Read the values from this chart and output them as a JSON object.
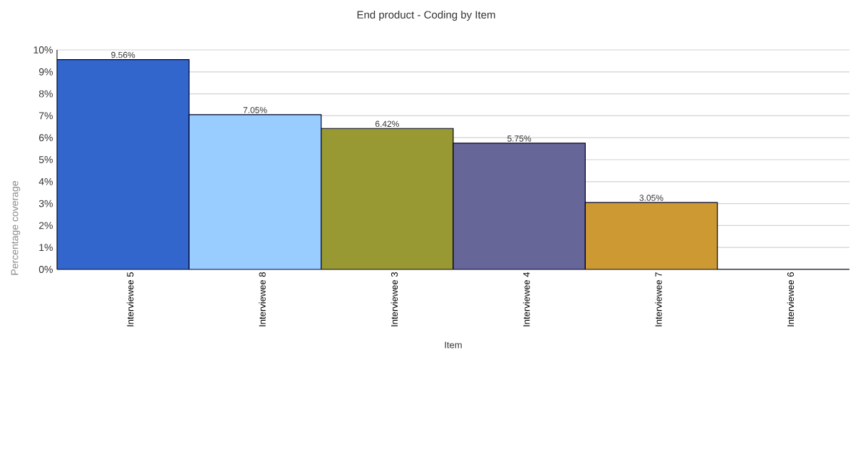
{
  "chart_data": {
    "type": "bar",
    "title": "End product - Coding by Item",
    "xlabel": "Item",
    "ylabel": "Percentage coverage",
    "categories": [
      "Interviewee 5",
      "Interviewee 8",
      "Interviewee 3",
      "Interviewee 4",
      "Interviewee 7",
      "Interviewee 6"
    ],
    "values": [
      9.56,
      7.05,
      6.42,
      5.75,
      3.05,
      0
    ],
    "value_labels": [
      "9.56%",
      "7.05%",
      "6.42%",
      "5.75%",
      "3.05%",
      null
    ],
    "colors": [
      "#3366cc",
      "#99ccff",
      "#999933",
      "#666699",
      "#cc9933",
      "#ff9999"
    ],
    "ylim": [
      0,
      10
    ],
    "yticks": [
      {
        "value": 0,
        "label": "0%"
      },
      {
        "value": 1,
        "label": "1%"
      },
      {
        "value": 2,
        "label": "2%"
      },
      {
        "value": 3,
        "label": "3%"
      },
      {
        "value": 4,
        "label": "4%"
      },
      {
        "value": 5,
        "label": "5%"
      },
      {
        "value": 6,
        "label": "6%"
      },
      {
        "value": 7,
        "label": "7%"
      },
      {
        "value": 8,
        "label": "8%"
      },
      {
        "value": 9,
        "label": "9%"
      },
      {
        "value": 10,
        "label": "10%"
      }
    ],
    "grid": "y"
  }
}
